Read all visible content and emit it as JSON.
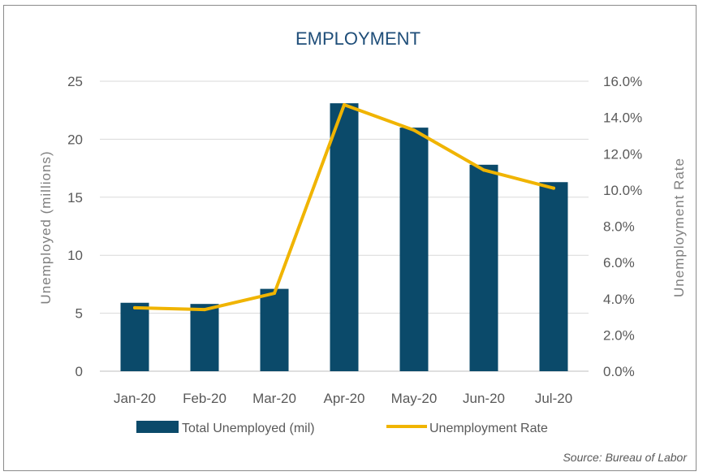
{
  "chart_data": {
    "type": "bar",
    "title": "EMPLOYMENT",
    "categories": [
      "Jan-20",
      "Feb-20",
      "Mar-20",
      "Apr-20",
      "May-20",
      "Jun-20",
      "Jul-20"
    ],
    "series": [
      {
        "name": "Total Unemployed (mil)",
        "type": "bar",
        "axis": "left",
        "color": "#0b4a6a",
        "values": [
          5.9,
          5.8,
          7.1,
          23.1,
          21.0,
          17.8,
          16.3
        ]
      },
      {
        "name": "Unemployment Rate",
        "type": "line",
        "axis": "right",
        "color": "#f0b400",
        "values": [
          3.5,
          3.4,
          4.3,
          14.7,
          13.3,
          11.1,
          10.1
        ]
      }
    ],
    "ylabel": "Unemployed (millions)",
    "ylim": [
      0,
      25
    ],
    "yticks": [
      "0",
      "5",
      "10",
      "15",
      "20",
      "25"
    ],
    "y2label": "Unemployment Rate",
    "y2lim": [
      0,
      16
    ],
    "y2ticks": [
      "0.0%",
      "2.0%",
      "4.0%",
      "6.0%",
      "8.0%",
      "10.0%",
      "12.0%",
      "14.0%",
      "16.0%"
    ],
    "grid": true,
    "legend": "bottom",
    "source": "Source: Bureau of Labor"
  }
}
